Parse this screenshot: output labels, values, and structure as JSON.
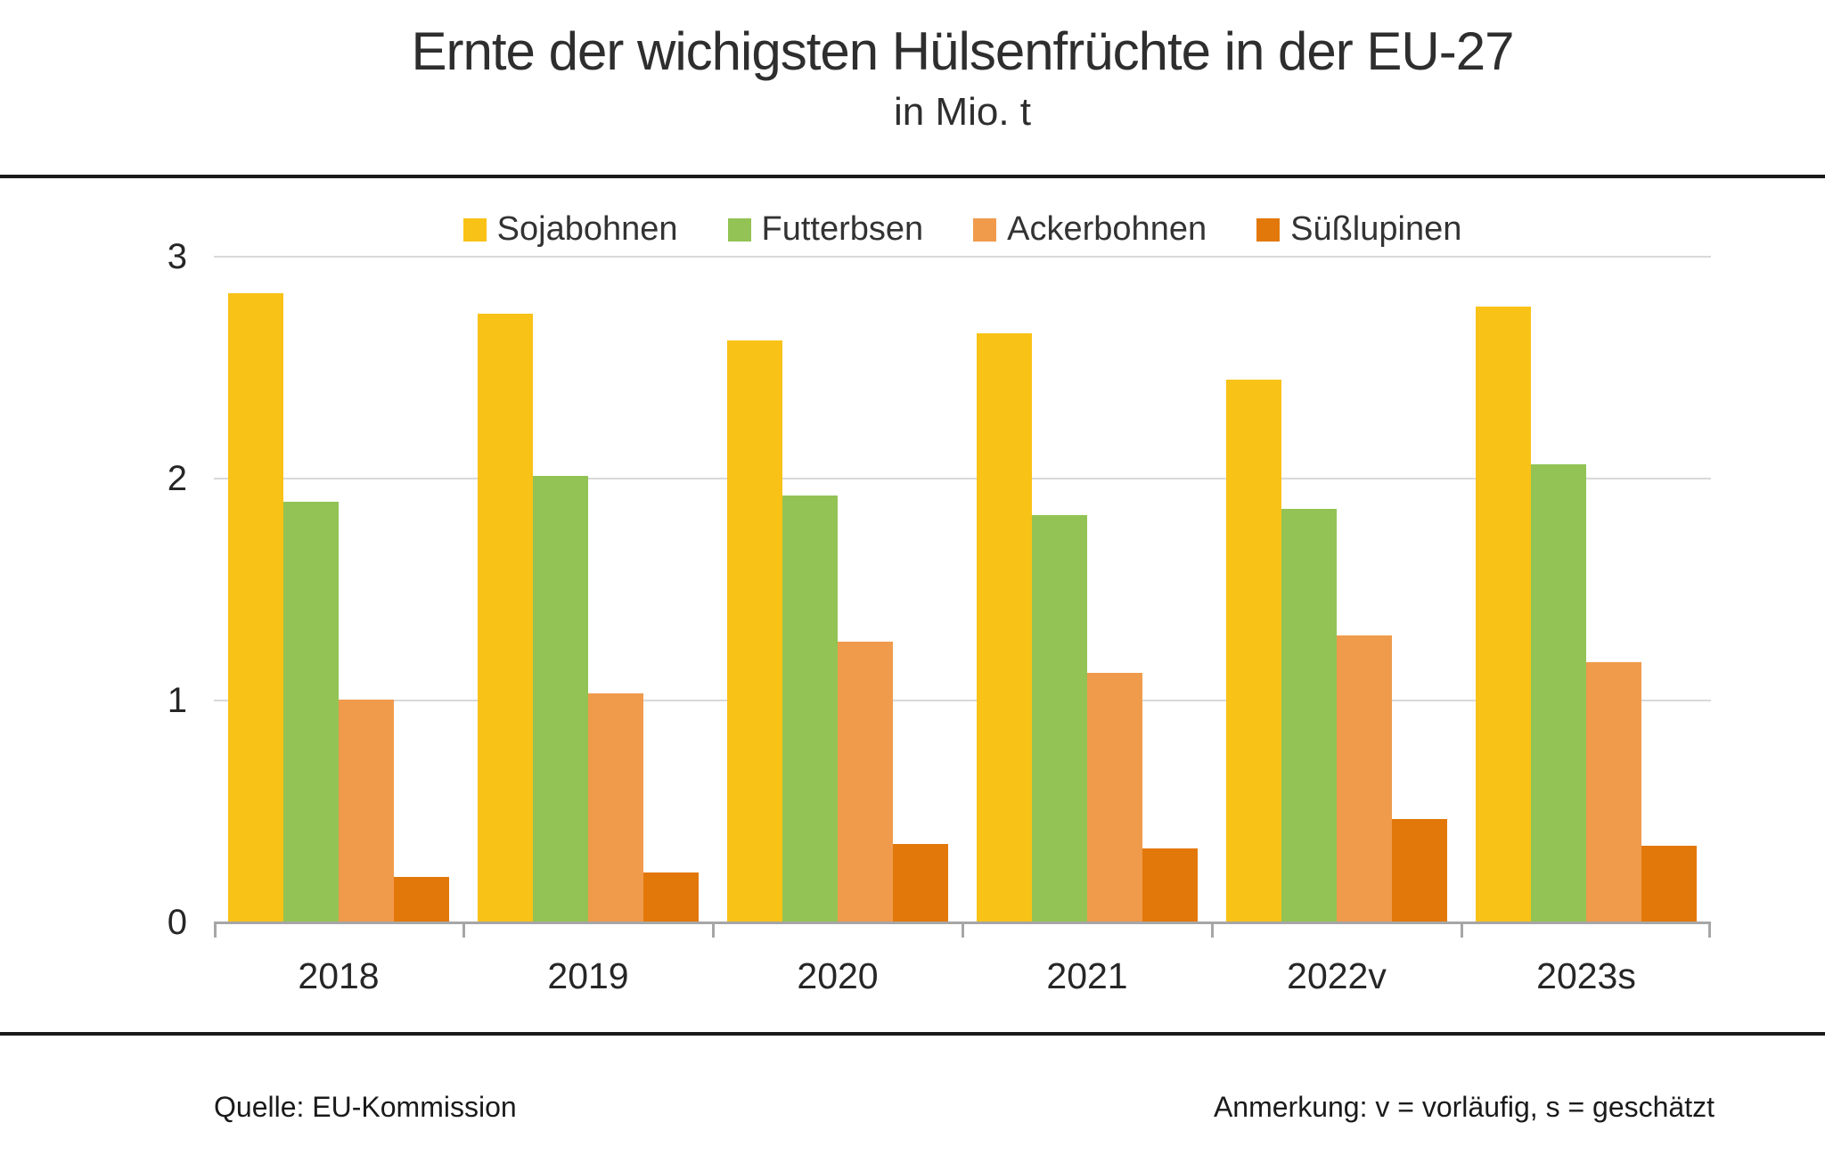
{
  "header": {
    "title": "Ernte der wichigsten Hülsenfrüchte in der EU-27",
    "subtitle": "in Mio. t"
  },
  "chart_data": {
    "type": "bar",
    "title": "Ernte der wichigsten Hülsenfrüchte in der EU-27",
    "subtitle": "in Mio. t",
    "categories": [
      "2018",
      "2019",
      "2020",
      "2021",
      "2022v",
      "2023s"
    ],
    "series": [
      {
        "name": "Sojabohnen",
        "color": "#F9C217",
        "values": [
          2.83,
          2.74,
          2.62,
          2.65,
          2.44,
          2.77
        ]
      },
      {
        "name": "Futterbsen",
        "color": "#92C354",
        "values": [
          1.89,
          2.01,
          1.92,
          1.83,
          1.86,
          2.06
        ]
      },
      {
        "name": "Ackerbohnen",
        "color": "#F09B4C",
        "values": [
          1.0,
          1.03,
          1.26,
          1.12,
          1.29,
          1.17
        ]
      },
      {
        "name": "Süßlupinen",
        "color": "#E3780A",
        "values": [
          0.2,
          0.22,
          0.35,
          0.33,
          0.46,
          0.34
        ]
      }
    ],
    "ylim": [
      0,
      3
    ],
    "yticks": [
      0,
      1,
      2,
      3
    ],
    "grid": "horizontal",
    "legend_position": "top",
    "grid_color": "#D9D9D9",
    "axis_color": "#A6A6A6",
    "rule_color": "#1A1A1A"
  },
  "footer": {
    "source": "Quelle: EU-Kommission",
    "note": "Anmerkung: v = vorläufig, s = geschätzt"
  }
}
